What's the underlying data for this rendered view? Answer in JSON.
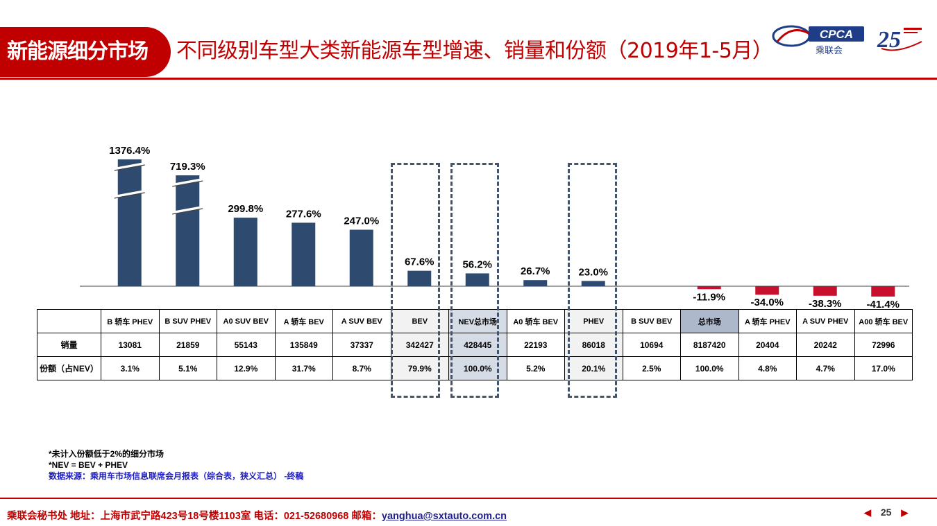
{
  "header": {
    "section_tag": "新能源细分市场",
    "title": "不同级别车型大类新能源车型增速、销量和份额（2019年1-5月）",
    "logo_text": "CPCA",
    "logo_subtext": "乘联会"
  },
  "colors": {
    "brand_red": "#c00000",
    "bar_positive": "#2e4a6e",
    "bar_negative": "#c8102e",
    "box_border": "#44546a"
  },
  "chart_data": {
    "type": "bar",
    "categories": [
      "B 轿车 PHEV",
      "B SUV PHEV",
      "A0 SUV BEV",
      "A 轿车 BEV",
      "A SUV BEV",
      "BEV",
      "NEV总市场",
      "A0 轿车 BEV",
      "PHEV",
      "B SUV BEV",
      "总市场",
      "A 轿车 PHEV",
      "A SUV PHEV",
      "A00 轿车 BEV"
    ],
    "values": [
      1376.4,
      719.3,
      299.8,
      277.6,
      247.0,
      67.6,
      56.2,
      26.7,
      23.0,
      null,
      -11.9,
      -34.0,
      -38.3,
      -41.4
    ],
    "data_labels": [
      "1376.4%",
      "719.3%",
      "299.8%",
      "277.6%",
      "247.0%",
      "67.6%",
      "56.2%",
      "26.7%",
      "23.0%",
      "",
      "-11.9%",
      "-34.0%",
      "-38.3%",
      "-41.4%"
    ],
    "axis_breaks": [
      "B 轿车 PHEV",
      "B SUV PHEV"
    ],
    "unit": "%",
    "grid": false
  },
  "table": {
    "row_labels": [
      "销量",
      "份额（占NEV）"
    ],
    "sales": [
      "13081",
      "21859",
      "55143",
      "135849",
      "37337",
      "342427",
      "428445",
      "22193",
      "86018",
      "10694",
      "8187420",
      "20404",
      "20242",
      "72996"
    ],
    "share": [
      "3.1%",
      "5.1%",
      "12.9%",
      "31.7%",
      "8.7%",
      "79.9%",
      "100.0%",
      "5.2%",
      "20.1%",
      "2.5%",
      "100.0%",
      "4.8%",
      "4.7%",
      "17.0%"
    ]
  },
  "notes": {
    "line1": "*未计入份额低于2%的细分市场",
    "line2": "*NEV = BEV + PHEV",
    "source": "数据来源：乘用车市场信息联席会月报表（综合表，狭义汇总） -终稿"
  },
  "footer": {
    "text": "乘联会秘书处   地址：上海市武宁路423号18号楼1103室  电话：021-52680968   邮箱：",
    "email": "yanghua@sxtauto.com.cn",
    "page": "25"
  }
}
